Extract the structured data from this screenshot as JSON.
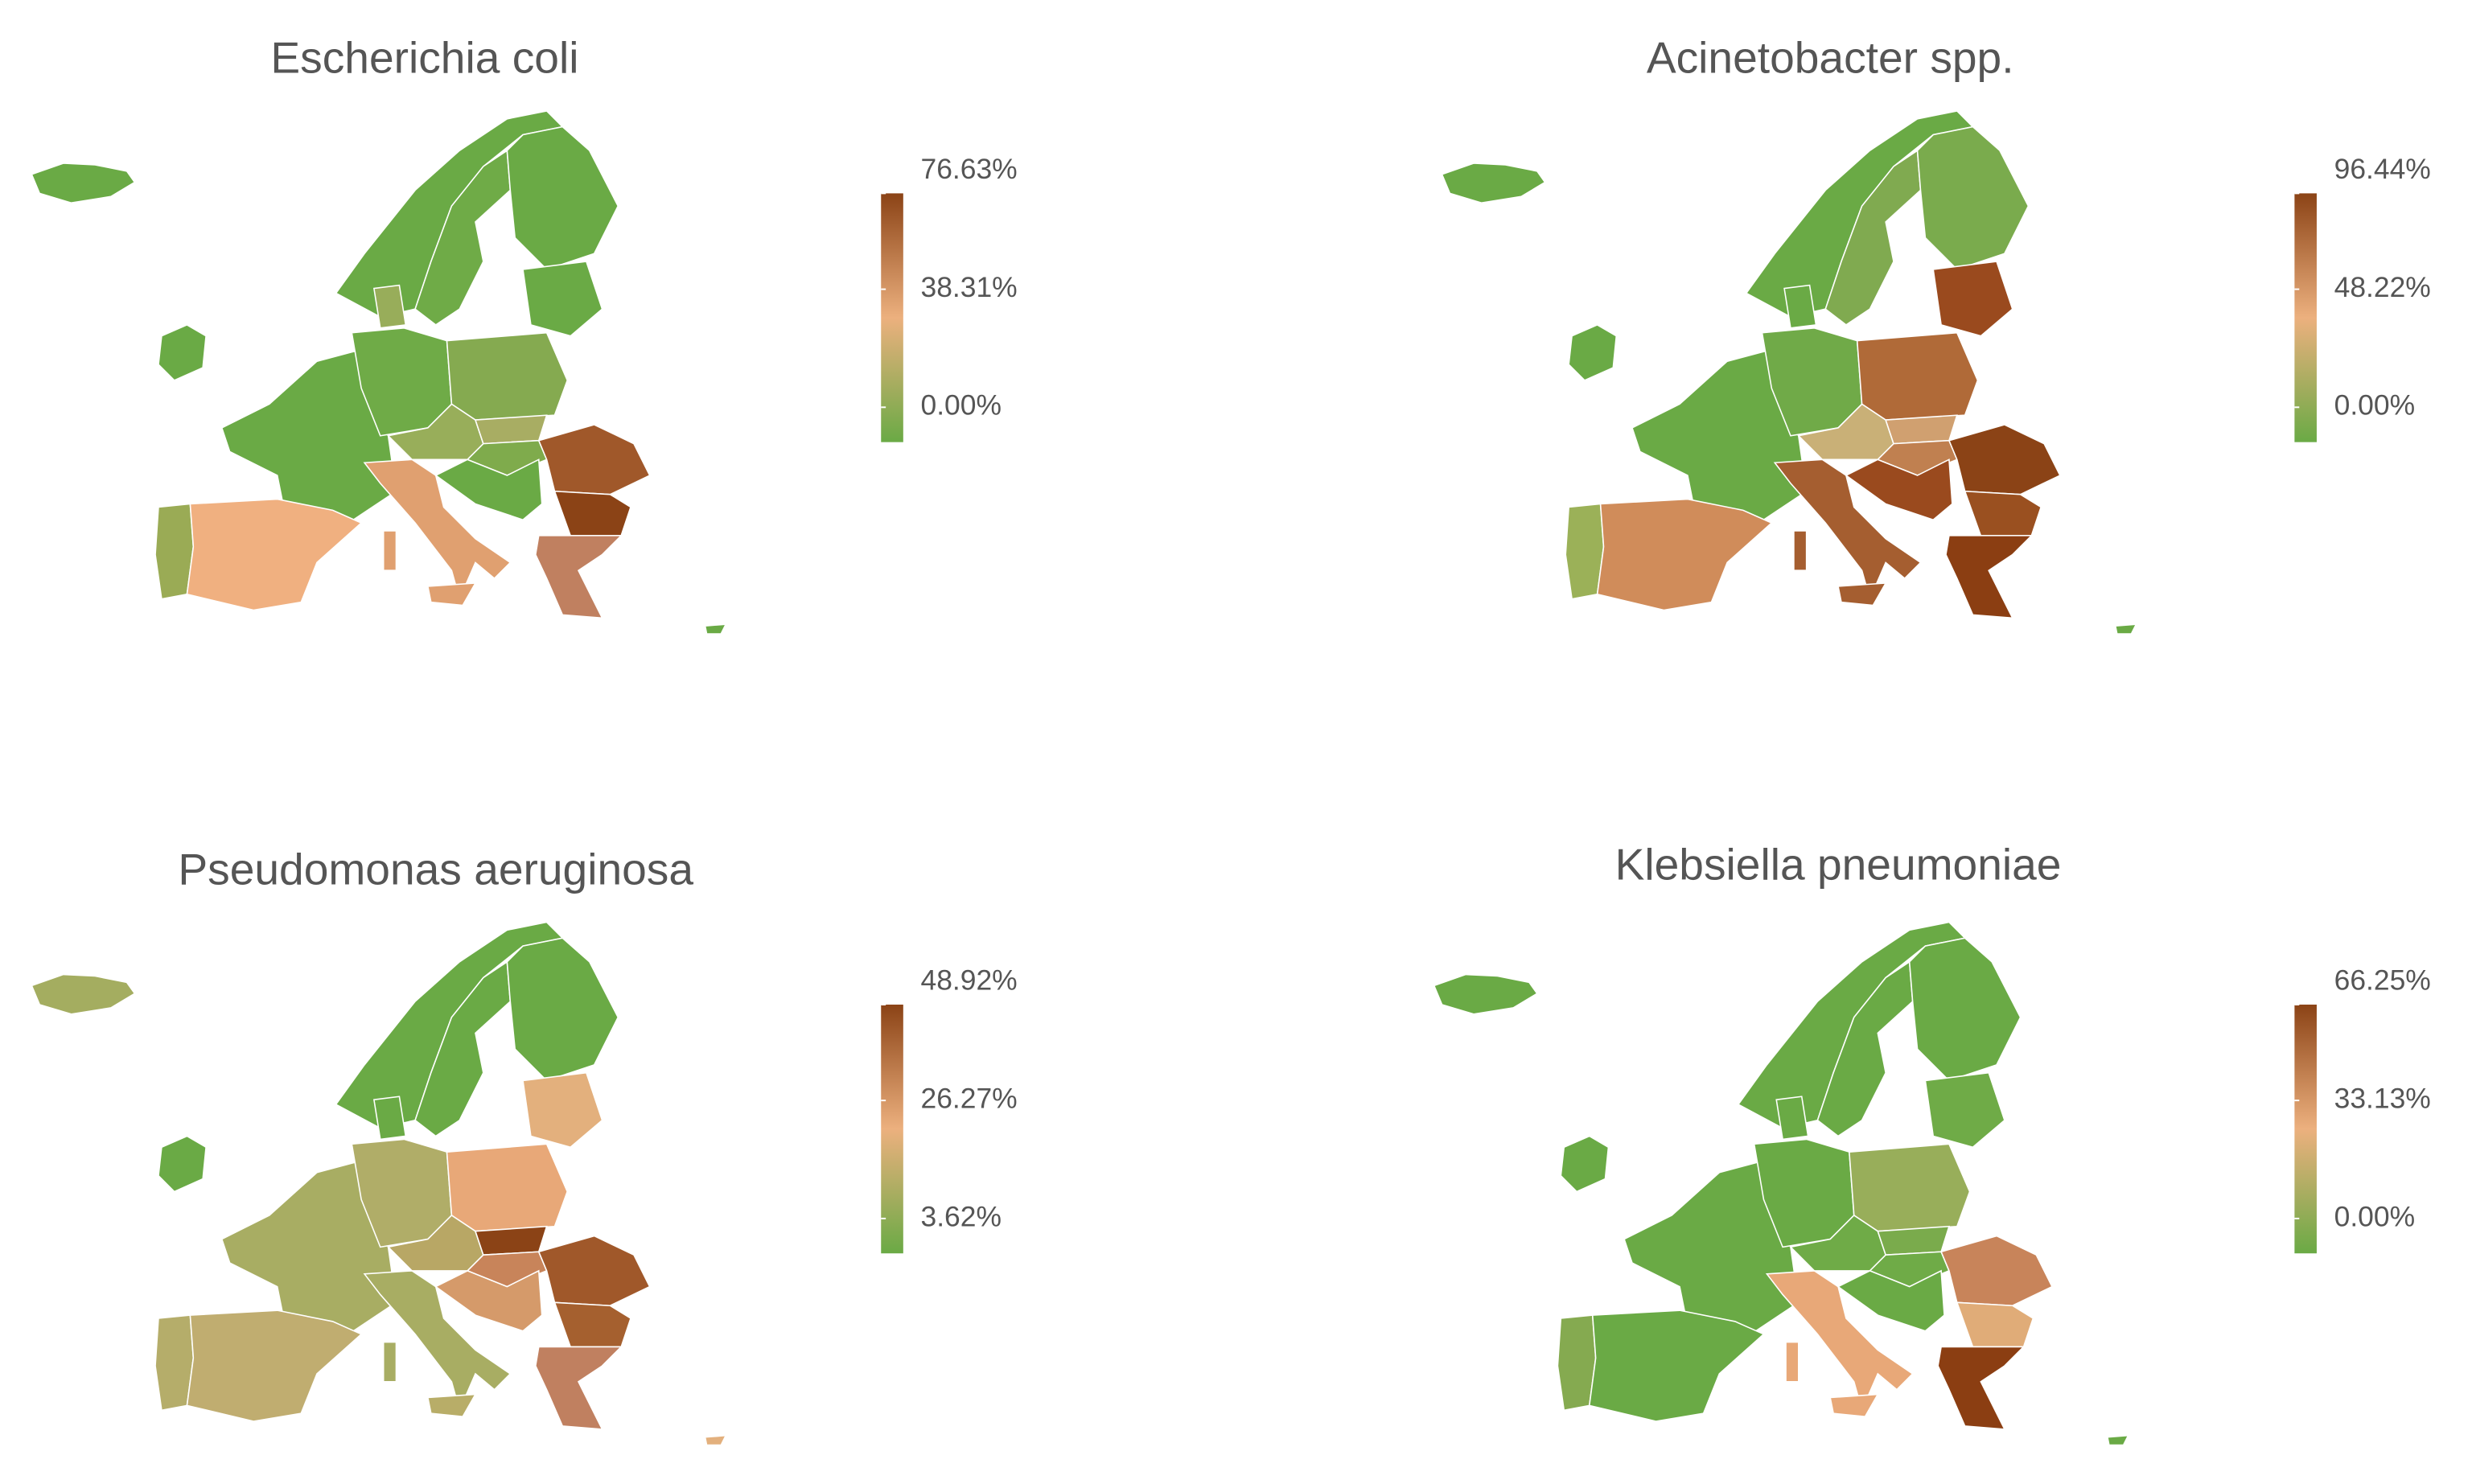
{
  "panels": [
    {
      "title": "Escherichia coli",
      "legend": {
        "ticks": [
          {
            "value": 0,
            "label": "0.00%"
          },
          {
            "value": 38.31,
            "label": "38.31%"
          },
          {
            "value": 76.63,
            "label": "76.63%"
          }
        ]
      }
    },
    {
      "title": "Acinetobacter spp.",
      "legend": {
        "ticks": [
          {
            "value": 0,
            "label": "0.00%"
          },
          {
            "value": 48.22,
            "label": "48.22%"
          },
          {
            "value": 96.44,
            "label": "96.44%"
          }
        ]
      }
    },
    {
      "title": "Pseudomonas aeruginosa",
      "legend": {
        "ticks": [
          {
            "value": 3.62,
            "label": "3.62%"
          },
          {
            "value": 26.27,
            "label": "26.27%"
          },
          {
            "value": 48.92,
            "label": "48.92%"
          }
        ]
      }
    },
    {
      "title": "Klebsiella pneumoniae",
      "legend": {
        "ticks": [
          {
            "value": 0,
            "label": "0.00%"
          },
          {
            "value": 33.13,
            "label": "33.13%"
          },
          {
            "value": 66.25,
            "label": "66.25%"
          }
        ]
      }
    }
  ]
}
